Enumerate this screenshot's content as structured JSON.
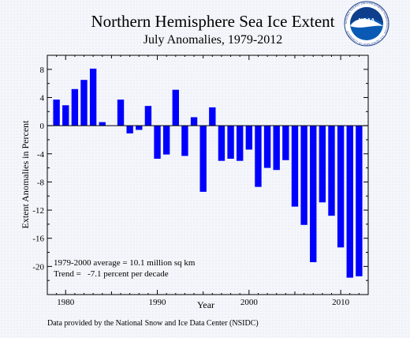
{
  "chart_data": {
    "type": "bar",
    "title": "Northern Hemisphere Sea Ice Extent",
    "subtitle": "July Anomalies, 1979-2012",
    "xlabel": "Year",
    "ylabel": "Extent Anomalies in Percent",
    "x": [
      1979,
      1980,
      1981,
      1982,
      1983,
      1984,
      1985,
      1986,
      1987,
      1988,
      1989,
      1990,
      1991,
      1992,
      1993,
      1994,
      1995,
      1996,
      1997,
      1998,
      1999,
      2000,
      2001,
      2002,
      2003,
      2004,
      2005,
      2006,
      2007,
      2008,
      2009,
      2010,
      2011,
      2012
    ],
    "values": [
      3.7,
      2.9,
      5.2,
      6.5,
      8.1,
      0.5,
      0.0,
      3.7,
      -1.1,
      -0.6,
      2.8,
      -4.7,
      -4.1,
      5.1,
      -4.3,
      1.2,
      -9.4,
      2.6,
      -5.0,
      -4.7,
      -5.0,
      -3.4,
      -8.7,
      -6.0,
      -6.3,
      -4.9,
      -11.5,
      -14.1,
      -19.4,
      -10.9,
      -12.8,
      -17.3,
      -21.6,
      -21.4
    ],
    "xlim": [
      1978,
      2013
    ],
    "ylim": [
      -24,
      10
    ],
    "xticks": [
      1980,
      1990,
      2000,
      2010
    ],
    "yticks": [
      8,
      4,
      0,
      -4,
      -8,
      -12,
      -16,
      -20
    ],
    "grid": false,
    "bar_color": "#0000ff",
    "annotations": [
      "1979-2000 average = 10.1 million sq km",
      "Trend =   -7.1 percent per decade"
    ]
  },
  "footer": {
    "source_text": "Data provided by the National Snow and Ice Data Center (NSIDC)"
  },
  "logo": {
    "icon": "noaa-logo",
    "text": "NOAA",
    "ring_text": "NATIONAL OCEANIC AND ATMOSPHERIC ADMINISTRATION · U.S. DEPARTMENT OF COMMERCE"
  }
}
